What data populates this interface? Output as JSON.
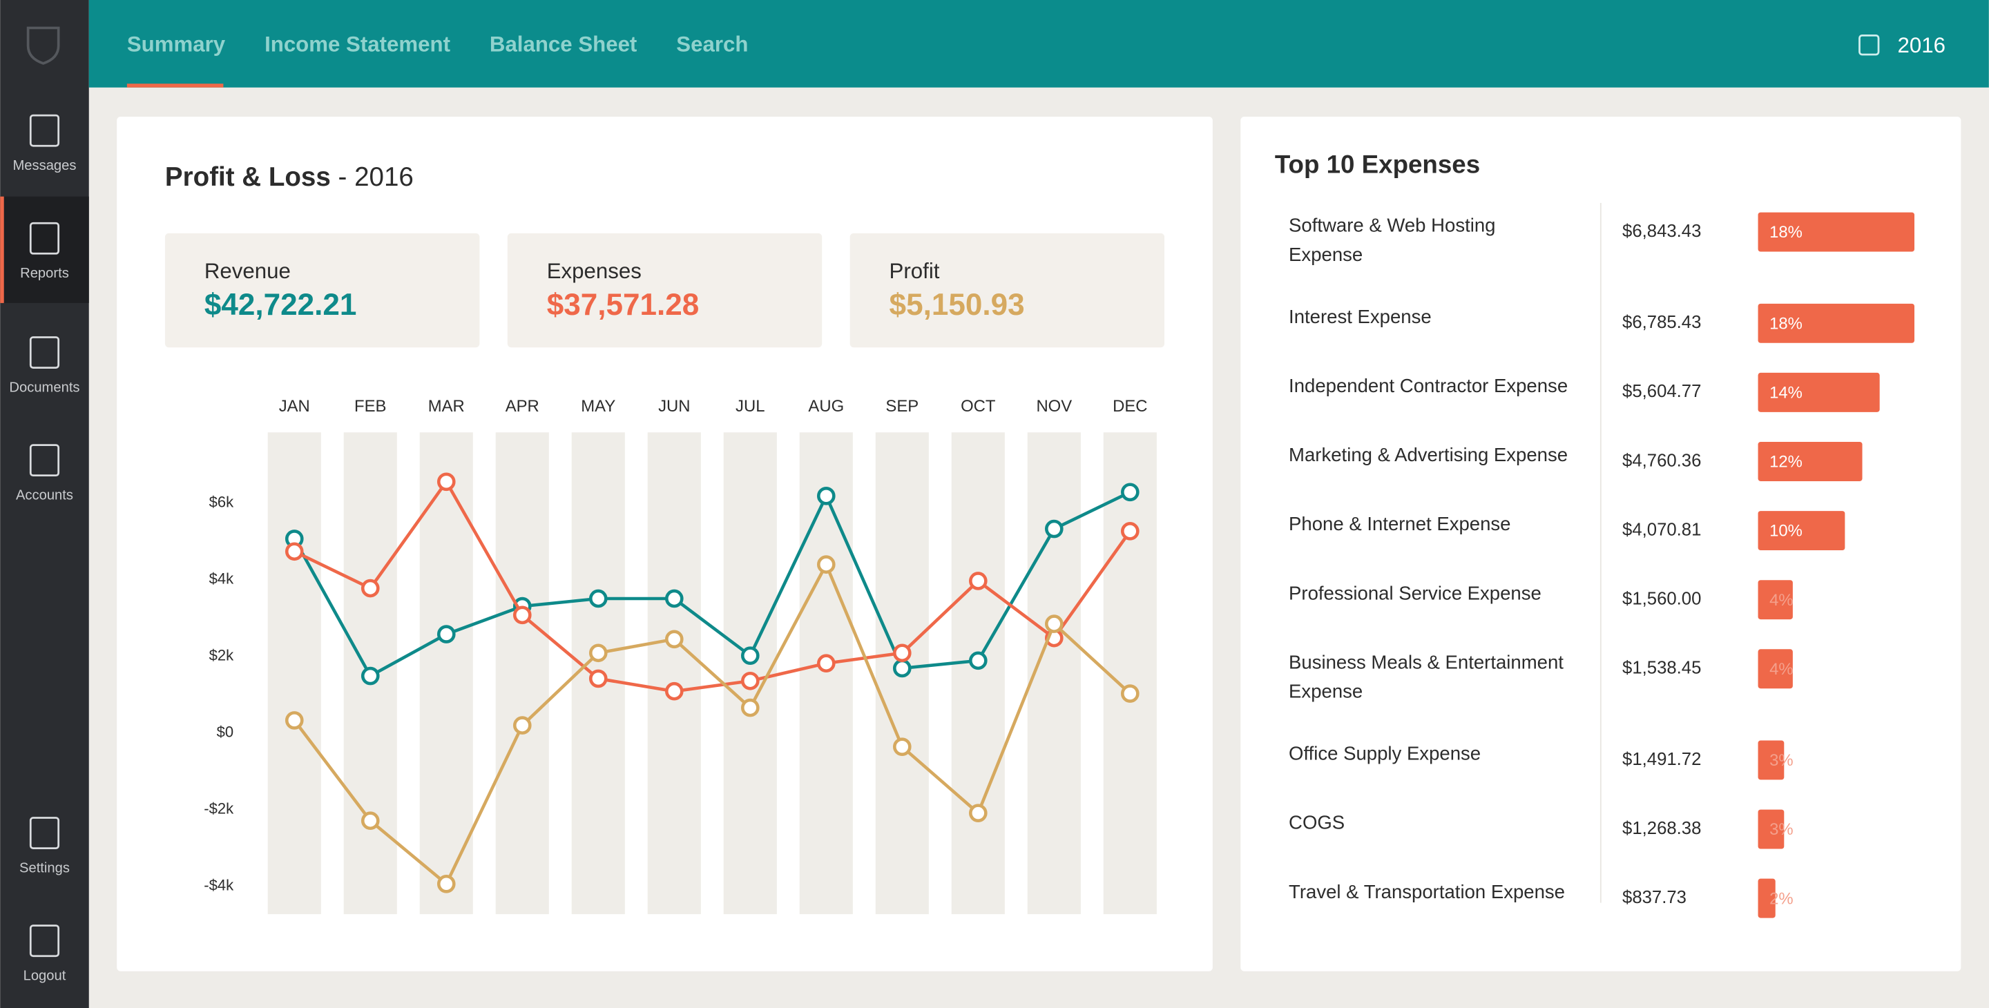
{
  "sidebar": {
    "items": [
      "Messages",
      "Reports",
      "Documents",
      "Accounts",
      "Settings",
      "Logout"
    ]
  },
  "nav": {
    "tabs": [
      "Summary",
      "Income Statement",
      "Balance Sheet",
      "Search"
    ],
    "year": "2016"
  },
  "pnl": {
    "title": "Profit & Loss",
    "subtitle": "- 2016"
  },
  "chart_data": [
    {
      "type": "line",
      "categories": [
        "JAN",
        "FEB",
        "MAR",
        "APR",
        "MAY",
        "JUN",
        "JUL",
        "AUG",
        "SEP",
        "OCT",
        "NOV",
        "DEC"
      ],
      "series": [
        {
          "name": "Revenue",
          "total": "$42,722.21",
          "color": "#0e8a8a",
          "values": [
            5070,
            1490,
            2580,
            3310,
            3510,
            3510,
            2020,
            6190,
            1690,
            1890,
            5330,
            6290
          ]
        },
        {
          "name": "Expenses",
          "total": "$37,571.28",
          "color": "#ef6849",
          "values": [
            4740,
            3780,
            6560,
            3080,
            1420,
            1090,
            1360,
            1820,
            2090,
            3970,
            2480,
            5270
          ]
        },
        {
          "name": "Profit",
          "total": "$5,150.93",
          "color": "#d6a95f",
          "values": [
            330,
            -2290,
            -3940,
            200,
            2090,
            2450,
            660,
            4400,
            -360,
            -2090,
            2850,
            1030
          ]
        }
      ],
      "ylim": [
        -4730,
        7850
      ],
      "yticks": [
        {
          "value": -4000,
          "label": "-$4k"
        },
        {
          "value": -2000,
          "label": "-$2k"
        },
        {
          "value": 0,
          "label": "$0"
        },
        {
          "value": 2000,
          "label": "$2k"
        },
        {
          "value": 4000,
          "label": "$4k"
        },
        {
          "value": 6000,
          "label": "$6k"
        }
      ]
    },
    {
      "type": "bar",
      "title": "Top 10 Expenses",
      "color": "#ef6849",
      "categories": [
        "Software & Web Hosting Expense",
        "Interest Expense",
        "Independent Contractor Expense",
        "Marketing & Advertising Expense",
        "Phone & Internet Expense",
        "Professional Service Expense",
        "Business Meals & Entertainment Expense",
        "Office Supply Expense",
        "COGS",
        "Travel & Transportation Expense"
      ],
      "amounts": [
        "$6,843.43",
        "$6,785.43",
        "$5,604.77",
        "$4,760.36",
        "$4,070.81",
        "$1,560.00",
        "$1,538.45",
        "$1,491.72",
        "$1,268.38",
        "$837.73"
      ],
      "values": [
        18,
        18,
        14,
        12,
        10,
        4,
        4,
        3,
        3,
        2
      ],
      "value_labels": [
        "18%",
        "18%",
        "14%",
        "12%",
        "10%",
        "4%",
        "4%",
        "3%",
        "3%",
        "2%"
      ]
    }
  ]
}
